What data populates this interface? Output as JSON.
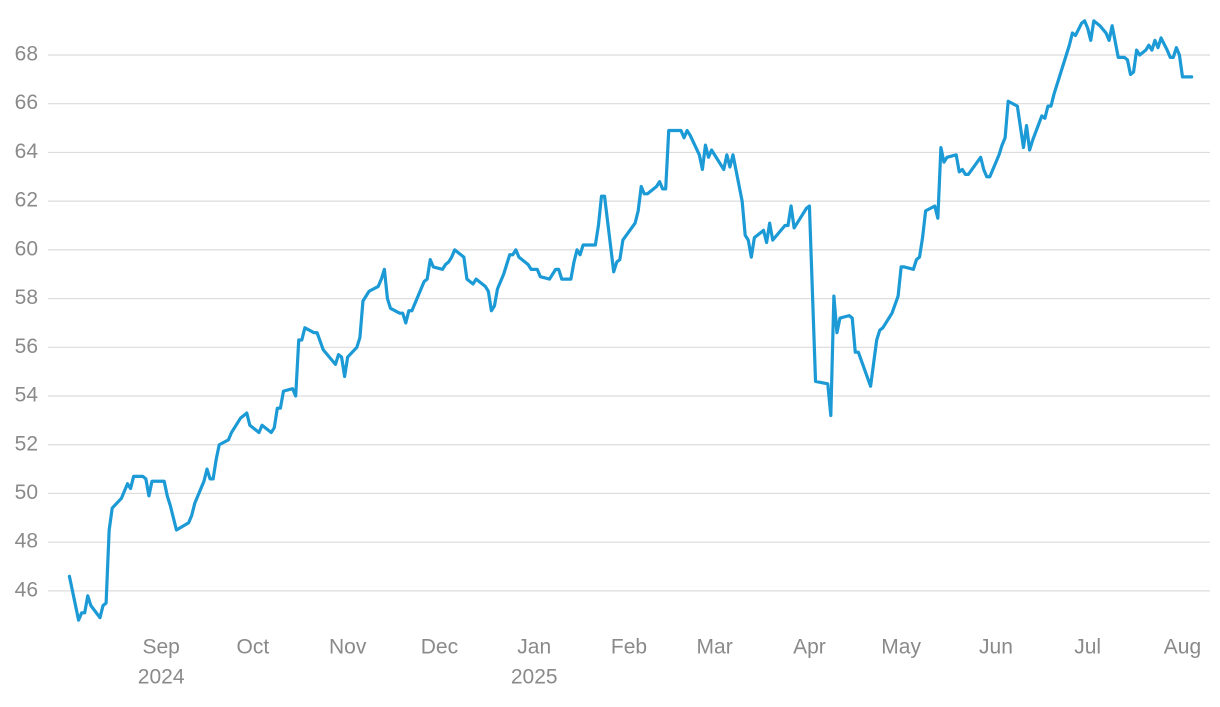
{
  "chart_data": {
    "type": "line",
    "color": "#1b9ad6",
    "grid": true,
    "ylim": [
      44.6,
      69.6
    ],
    "yticks": [
      46,
      48,
      50,
      52,
      54,
      56,
      58,
      60,
      62,
      64,
      66,
      68
    ],
    "xlim": [
      "2024-07-26",
      "2025-08-10"
    ],
    "xticks": [
      {
        "value": "2024-09-01",
        "label": "Sep"
      },
      {
        "value": "2024-10-01",
        "label": "Oct"
      },
      {
        "value": "2024-11-01",
        "label": "Nov"
      },
      {
        "value": "2024-12-01",
        "label": "Dec"
      },
      {
        "value": "2025-01-01",
        "label": "Jan"
      },
      {
        "value": "2025-02-01",
        "label": "Feb"
      },
      {
        "value": "2025-03-01",
        "label": "Mar"
      },
      {
        "value": "2025-04-01",
        "label": "Apr"
      },
      {
        "value": "2025-05-01",
        "label": "May"
      },
      {
        "value": "2025-06-01",
        "label": "Jun"
      },
      {
        "value": "2025-07-01",
        "label": "Jul"
      },
      {
        "value": "2025-08-01",
        "label": "Aug"
      }
    ],
    "xtick_years": [
      {
        "value": "2024-09-01",
        "label": "2024"
      },
      {
        "value": "2025-01-01",
        "label": "2025"
      }
    ],
    "x": [
      "2024-08-02",
      "2024-08-05",
      "2024-08-06",
      "2024-08-07",
      "2024-08-08",
      "2024-08-09",
      "2024-08-12",
      "2024-08-13",
      "2024-08-14",
      "2024-08-15",
      "2024-08-16",
      "2024-08-19",
      "2024-08-21",
      "2024-08-22",
      "2024-08-23",
      "2024-08-26",
      "2024-08-27",
      "2024-08-28",
      "2024-08-29",
      "2024-09-02",
      "2024-09-03",
      "2024-09-04",
      "2024-09-06",
      "2024-09-10",
      "2024-09-11",
      "2024-09-12",
      "2024-09-13",
      "2024-09-15",
      "2024-09-16",
      "2024-09-17",
      "2024-09-18",
      "2024-09-19",
      "2024-09-20",
      "2024-09-23",
      "2024-09-24",
      "2024-09-26",
      "2024-09-27",
      "2024-09-29",
      "2024-09-30",
      "2024-10-03",
      "2024-10-04",
      "2024-10-07",
      "2024-10-08",
      "2024-10-09",
      "2024-10-10",
      "2024-10-11",
      "2024-10-14",
      "2024-10-15",
      "2024-10-16",
      "2024-10-17",
      "2024-10-18",
      "2024-10-21",
      "2024-10-22",
      "2024-10-24",
      "2024-10-28",
      "2024-10-29",
      "2024-10-30",
      "2024-10-31",
      "2024-11-01",
      "2024-11-04",
      "2024-11-05",
      "2024-11-06",
      "2024-11-07",
      "2024-11-08",
      "2024-11-11",
      "2024-11-12",
      "2024-11-13",
      "2024-11-14",
      "2024-11-15",
      "2024-11-18",
      "2024-11-19",
      "2024-11-20",
      "2024-11-21",
      "2024-11-22",
      "2024-11-25",
      "2024-11-26",
      "2024-11-27",
      "2024-11-28",
      "2024-11-29",
      "2024-12-02",
      "2024-12-03",
      "2024-12-04",
      "2024-12-05",
      "2024-12-06",
      "2024-12-09",
      "2024-12-10",
      "2024-12-12",
      "2024-12-13",
      "2024-12-16",
      "2024-12-17",
      "2024-12-18",
      "2024-12-19",
      "2024-12-20",
      "2024-12-22",
      "2024-12-24",
      "2024-12-25",
      "2024-12-26",
      "2024-12-27",
      "2024-12-30",
      "2024-12-31",
      "2025-01-02",
      "2025-01-03",
      "2025-01-06",
      "2025-01-08",
      "2025-01-09",
      "2025-01-10",
      "2025-01-13",
      "2025-01-14",
      "2025-01-15",
      "2025-01-16",
      "2025-01-17",
      "2025-01-21",
      "2025-01-22",
      "2025-01-23",
      "2025-01-24",
      "2025-01-27",
      "2025-01-28",
      "2025-01-29",
      "2025-01-30",
      "2025-02-03",
      "2025-02-04",
      "2025-02-05",
      "2025-02-06",
      "2025-02-07",
      "2025-02-10",
      "2025-02-11",
      "2025-02-12",
      "2025-02-13",
      "2025-02-14",
      "2025-02-18",
      "2025-02-19",
      "2025-02-20",
      "2025-02-21",
      "2025-02-24",
      "2025-02-25",
      "2025-02-26",
      "2025-02-27",
      "2025-02-28",
      "2025-03-03",
      "2025-03-04",
      "2025-03-05",
      "2025-03-06",
      "2025-03-07",
      "2025-03-10",
      "2025-03-11",
      "2025-03-12",
      "2025-03-13",
      "2025-03-14",
      "2025-03-17",
      "2025-03-18",
      "2025-03-19",
      "2025-03-20",
      "2025-03-24",
      "2025-03-25",
      "2025-03-26",
      "2025-03-27",
      "2025-03-31",
      "2025-04-01",
      "2025-04-03",
      "2025-04-07",
      "2025-04-08",
      "2025-04-09",
      "2025-04-10",
      "2025-04-11",
      "2025-04-14",
      "2025-04-15",
      "2025-04-16",
      "2025-04-17",
      "2025-04-21",
      "2025-04-23",
      "2025-04-24",
      "2025-04-25",
      "2025-04-28",
      "2025-04-30",
      "2025-05-01",
      "2025-05-02",
      "2025-05-05",
      "2025-05-06",
      "2025-05-07",
      "2025-05-08",
      "2025-05-09",
      "2025-05-12",
      "2025-05-13",
      "2025-05-14",
      "2025-05-15",
      "2025-05-16",
      "2025-05-19",
      "2025-05-20",
      "2025-05-21",
      "2025-05-22",
      "2025-05-23",
      "2025-05-27",
      "2025-05-28",
      "2025-05-29",
      "2025-05-30",
      "2025-06-02",
      "2025-06-03",
      "2025-06-04",
      "2025-06-05",
      "2025-06-08",
      "2025-06-10",
      "2025-06-11",
      "2025-06-12",
      "2025-06-13",
      "2025-06-16",
      "2025-06-17",
      "2025-06-18",
      "2025-06-19",
      "2025-06-20",
      "2025-06-22",
      "2025-06-23",
      "2025-06-24",
      "2025-06-25",
      "2025-06-26",
      "2025-06-27",
      "2025-06-29",
      "2025-06-30",
      "2025-07-01",
      "2025-07-02",
      "2025-07-03",
      "2025-07-05",
      "2025-07-07",
      "2025-07-08",
      "2025-07-09",
      "2025-07-11",
      "2025-07-13",
      "2025-07-14",
      "2025-07-15",
      "2025-07-16",
      "2025-07-17",
      "2025-07-18",
      "2025-07-20",
      "2025-07-21",
      "2025-07-22",
      "2025-07-23",
      "2025-07-24",
      "2025-07-25",
      "2025-07-27",
      "2025-07-28",
      "2025-07-29",
      "2025-07-30",
      "2025-07-31",
      "2025-08-01",
      "2025-08-04"
    ],
    "values": [
      46.6,
      44.8,
      45.1,
      45.1,
      45.8,
      45.4,
      44.9,
      45.4,
      45.5,
      48.5,
      49.4,
      49.8,
      50.4,
      50.2,
      50.7,
      50.7,
      50.6,
      49.9,
      50.5,
      50.5,
      49.9,
      49.5,
      48.5,
      48.8,
      49.1,
      49.6,
      49.9,
      50.5,
      51.0,
      50.6,
      50.6,
      51.4,
      52.0,
      52.2,
      52.5,
      52.9,
      53.1,
      53.3,
      52.8,
      52.5,
      52.8,
      52.5,
      52.7,
      53.5,
      53.5,
      54.2,
      54.3,
      54.0,
      56.3,
      56.3,
      56.8,
      56.6,
      56.6,
      55.9,
      55.3,
      55.7,
      55.6,
      54.8,
      55.6,
      56.0,
      56.4,
      57.9,
      58.1,
      58.3,
      58.5,
      58.8,
      59.2,
      58.0,
      57.6,
      57.4,
      57.4,
      57.0,
      57.5,
      57.5,
      58.4,
      58.7,
      58.8,
      59.6,
      59.3,
      59.2,
      59.4,
      59.5,
      59.7,
      60.0,
      59.7,
      58.8,
      58.6,
      58.8,
      58.5,
      58.3,
      57.5,
      57.7,
      58.4,
      59.0,
      59.8,
      59.8,
      60.0,
      59.7,
      59.4,
      59.2,
      59.2,
      58.9,
      58.8,
      59.2,
      59.2,
      58.8,
      58.8,
      59.5,
      60.0,
      59.8,
      60.2,
      60.2,
      61.0,
      62.2,
      62.2,
      59.1,
      59.5,
      59.6,
      60.4,
      61.1,
      61.6,
      62.6,
      62.3,
      62.3,
      62.6,
      62.8,
      62.5,
      62.5,
      64.9,
      64.9,
      64.6,
      64.9,
      64.7,
      63.9,
      63.3,
      64.3,
      63.8,
      64.1,
      63.5,
      63.3,
      63.9,
      63.4,
      63.9,
      62.0,
      60.6,
      60.4,
      59.7,
      60.5,
      60.8,
      60.3,
      61.1,
      60.4,
      61.0,
      61.0,
      61.8,
      60.9,
      61.7,
      61.8,
      54.6,
      54.5,
      53.2,
      58.1,
      56.6,
      57.2,
      57.3,
      57.2,
      55.8,
      55.8,
      54.4,
      56.3,
      56.7,
      56.8,
      57.4,
      58.1,
      59.3,
      59.3,
      59.2,
      59.6,
      59.7,
      60.5,
      61.6,
      61.8,
      61.3,
      64.2,
      63.6,
      63.8,
      63.9,
      63.2,
      63.3,
      63.1,
      63.1,
      63.8,
      63.3,
      63.0,
      63.0,
      63.9,
      64.3,
      64.6,
      66.1,
      65.9,
      64.2,
      65.1,
      64.1,
      64.5,
      65.5,
      65.4,
      65.9,
      65.9,
      66.4,
      67.2,
      67.6,
      68.0,
      68.4,
      68.9,
      68.8,
      69.3,
      69.4,
      69.1,
      68.6,
      69.4,
      69.2,
      68.9,
      68.6,
      69.2,
      67.9,
      67.9,
      67.8,
      67.2,
      67.3,
      68.2,
      68.0,
      68.2,
      68.4,
      68.2,
      68.6,
      68.3,
      68.7,
      68.2,
      67.9,
      67.9,
      68.3,
      68.0,
      67.1,
      67.1
    ]
  }
}
